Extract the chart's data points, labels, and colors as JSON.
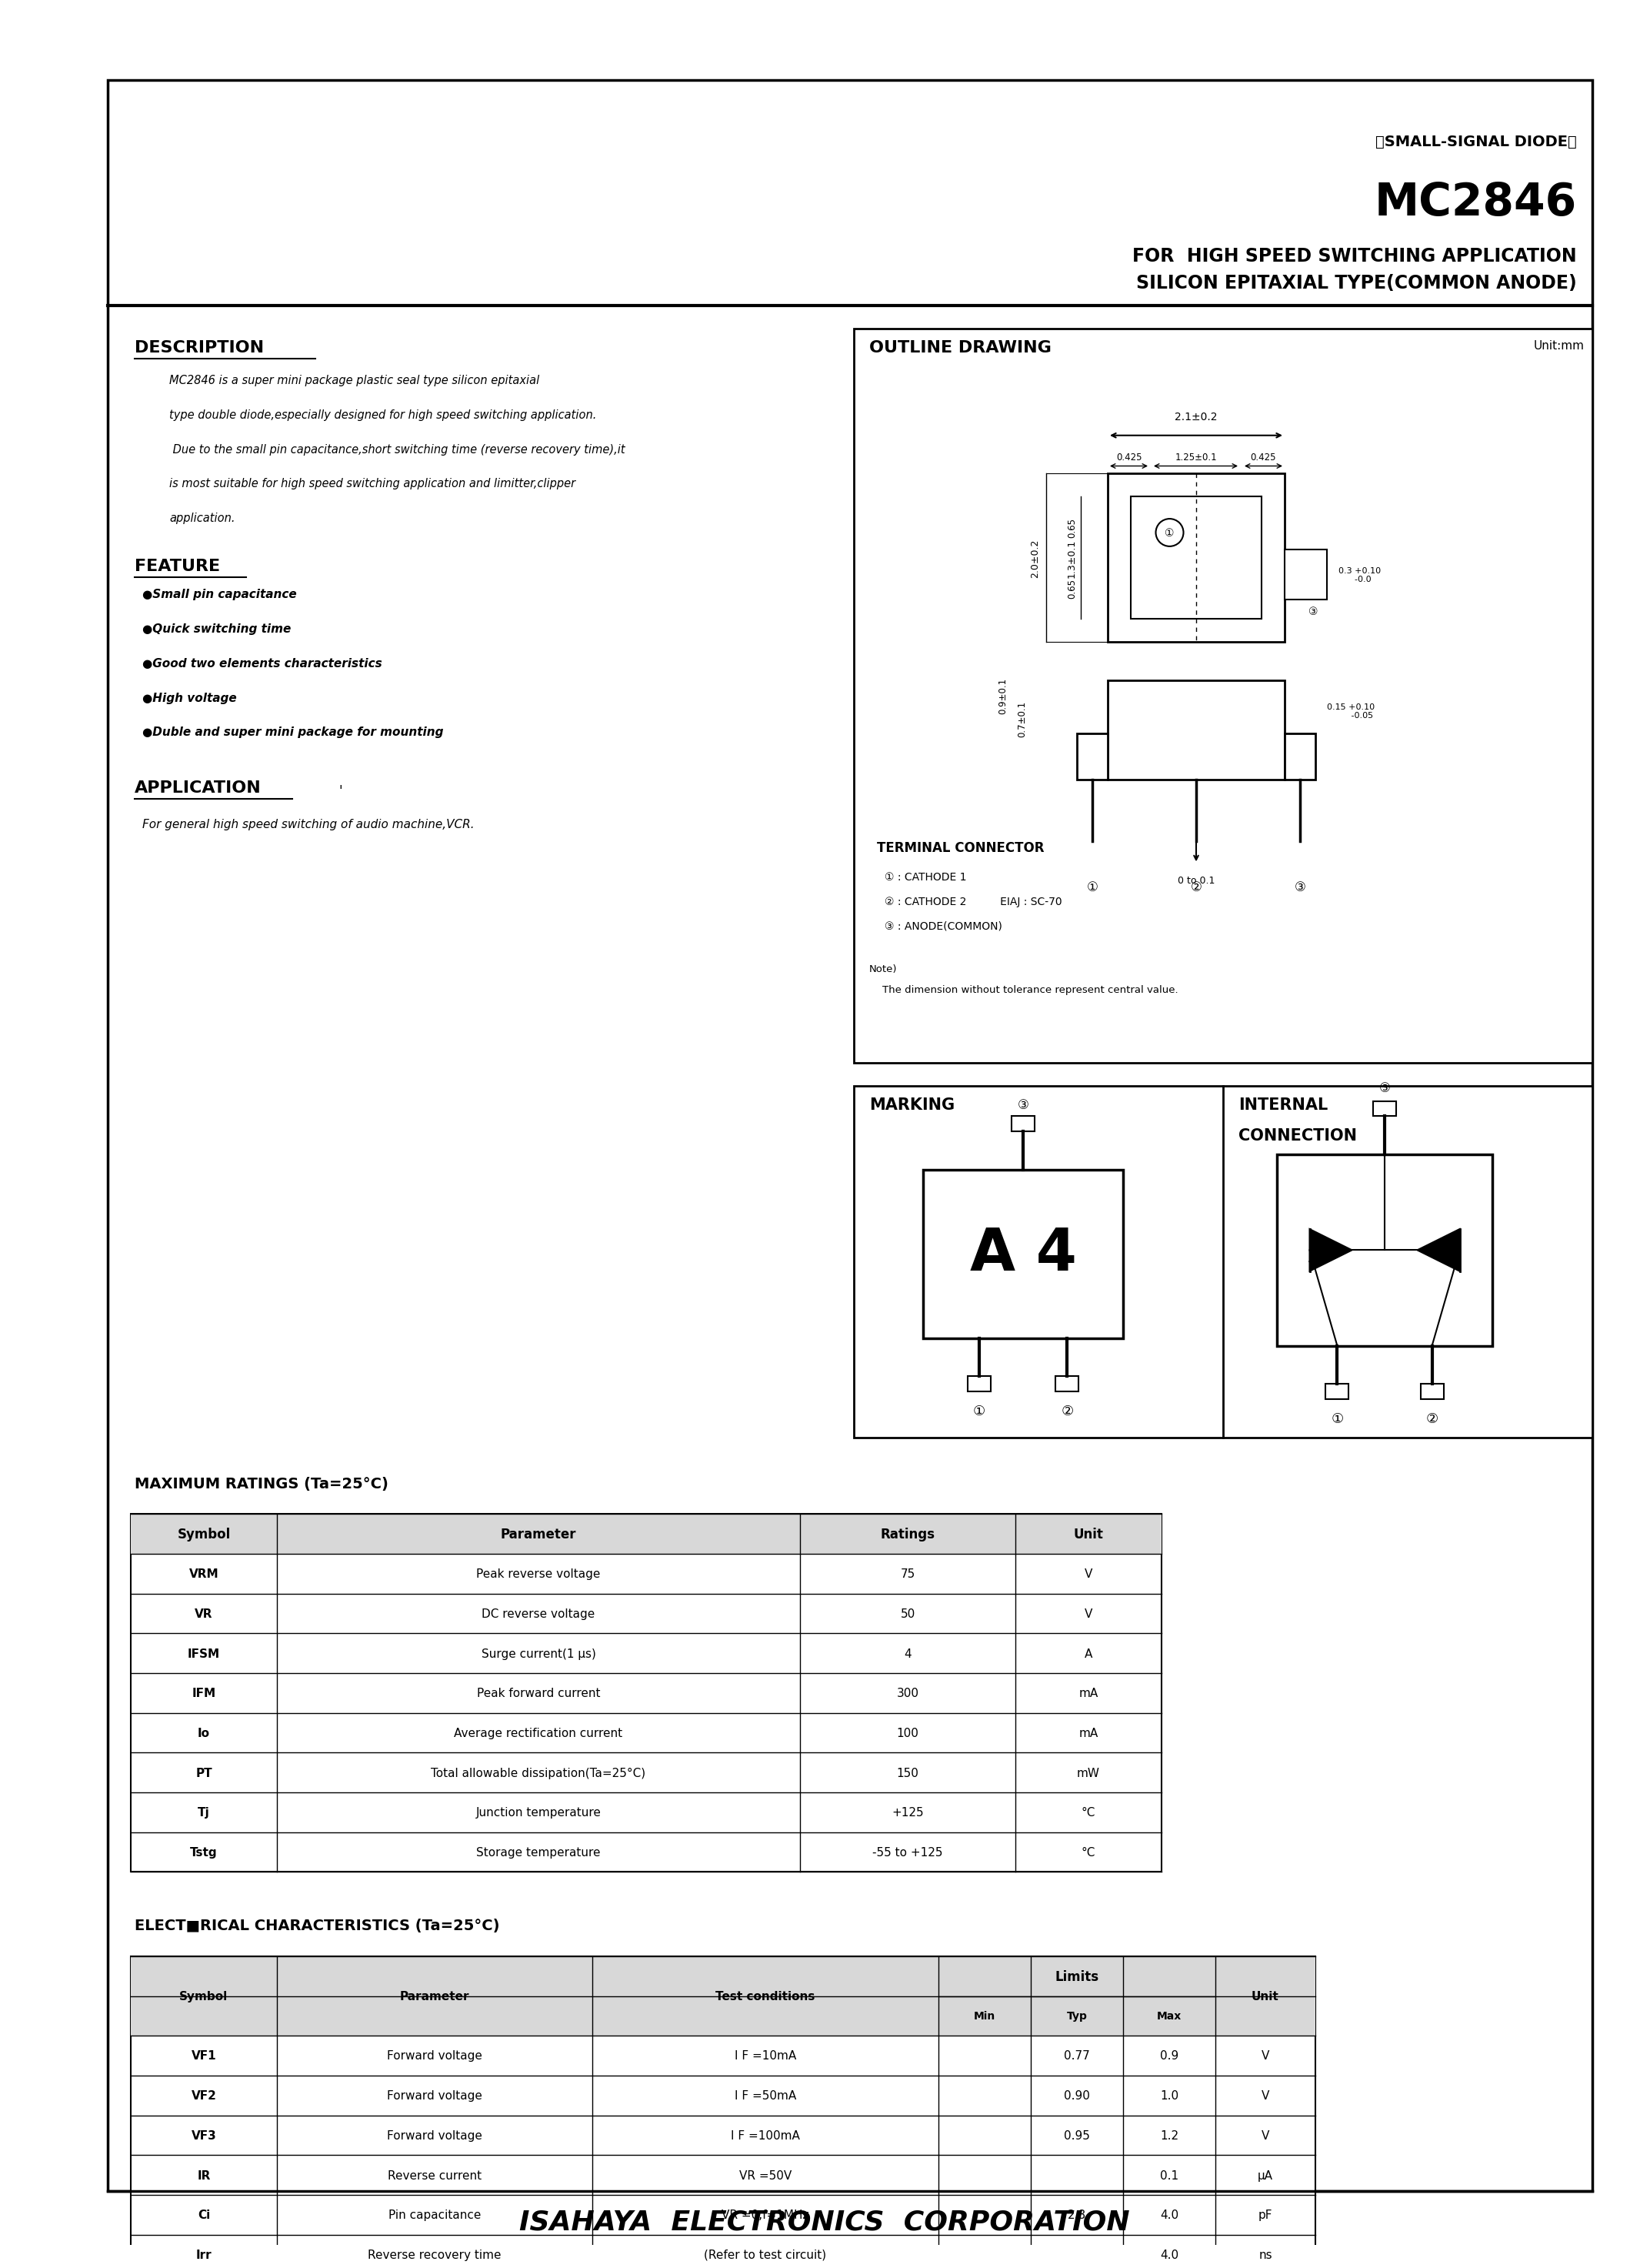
{
  "title_small": "〈SMALL-SIGNAL DIODE〉",
  "title_main": "MC2846",
  "title_sub1": "FOR  HIGH SPEED SWITCHING APPLICATION",
  "title_sub2": "SILICON EPITAXIAL TYPE(COMMON ANODE)",
  "description_title": "DESCRIPTION",
  "description_text": [
    "MC2846 is a super mini package plastic seal type silicon epitaxial",
    "type double diode,especially designed for high speed switching application.",
    " Due to the small pin capacitance,short switching time (reverse recovery time),it",
    "is most suitable for high speed switching application and limitter,clipper",
    "application."
  ],
  "feature_title": "FEATURE",
  "features": [
    "●Small pin capacitance",
    "●Quick switching time",
    "●Good two elements characteristics",
    "●High voltage",
    "●Duble and super mini package for mounting"
  ],
  "application_title": "APPLICATION",
  "application_text": "For general high speed switching of audio machine,VCR.",
  "outline_title": "OUTLINE DRAWING",
  "outline_unit": "Unit:mm",
  "terminal_title": "TERMINAL CONNECTOR",
  "terminal_items": [
    "① : CATHODE 1",
    "② : CATHODE 2          EIAJ : SC-70",
    "③ : ANODE(COMMON)"
  ],
  "note_text": "Note)\n    The dimension without tolerance represent central value.",
  "marking_title": "MARKING",
  "internal_title": "INTERNAL\nCONNECTION",
  "marking_text": "A 4",
  "max_ratings_title": "MAXIMUM RATINGS (Ta=25°C)",
  "max_ratings_headers": [
    "Symbol",
    "Parameter",
    "Ratings",
    "Unit"
  ],
  "max_ratings_rows": [
    [
      "VRM",
      "Peak reverse voltage",
      "75",
      "V"
    ],
    [
      "VR",
      "DC reverse voltage",
      "50",
      "V"
    ],
    [
      "IFSM",
      "Surge current(1 μs)",
      "4",
      "A"
    ],
    [
      "IFM",
      "Peak forward current",
      "300",
      "mA"
    ],
    [
      "Io",
      "Average rectification current",
      "100",
      "mA"
    ],
    [
      "PT",
      "Total allowable dissipation(Ta=25°C)",
      "150",
      "mW"
    ],
    [
      "Tj",
      "Junction temperature",
      "+125",
      "°C"
    ],
    [
      "Tstg",
      "Storage temperature",
      "-55 to +125",
      "°C"
    ]
  ],
  "elec_char_title": "ELECT■RICAL CHARACTERISTICS (Ta=25°C)",
  "elec_char_headers": [
    "Symbol",
    "Parameter",
    "Test conditions",
    "Min",
    "Typ",
    "Max",
    "Unit"
  ],
  "elec_char_rows": [
    [
      "VF1",
      "Forward voltage",
      "I F =10mA",
      "",
      "0.77",
      "0.9",
      "V"
    ],
    [
      "VF2",
      "Forward voltage",
      "I F =50mA",
      "",
      "0.90",
      "1.0",
      "V"
    ],
    [
      "VF3",
      "Forward voltage",
      "I F =100mA",
      "",
      "0.95",
      "1.2",
      "V"
    ],
    [
      "IR",
      "Reverse current",
      "VR =50V",
      "",
      "",
      "0.1",
      "μA"
    ],
    [
      "Ci",
      "Pin capacitance",
      "VR =0,f=1MHz",
      "",
      "2.8",
      "4.0",
      "pF"
    ],
    [
      "Irr",
      "Reverse recovery time",
      "(Refer to test circuit)",
      "",
      "",
      "4.0",
      "ns"
    ]
  ],
  "footer_text": "ISAHAYA  ELECTRONICS  CORPORATION",
  "bg_color": "#ffffff",
  "border_color": "#000000",
  "text_color": "#000000"
}
